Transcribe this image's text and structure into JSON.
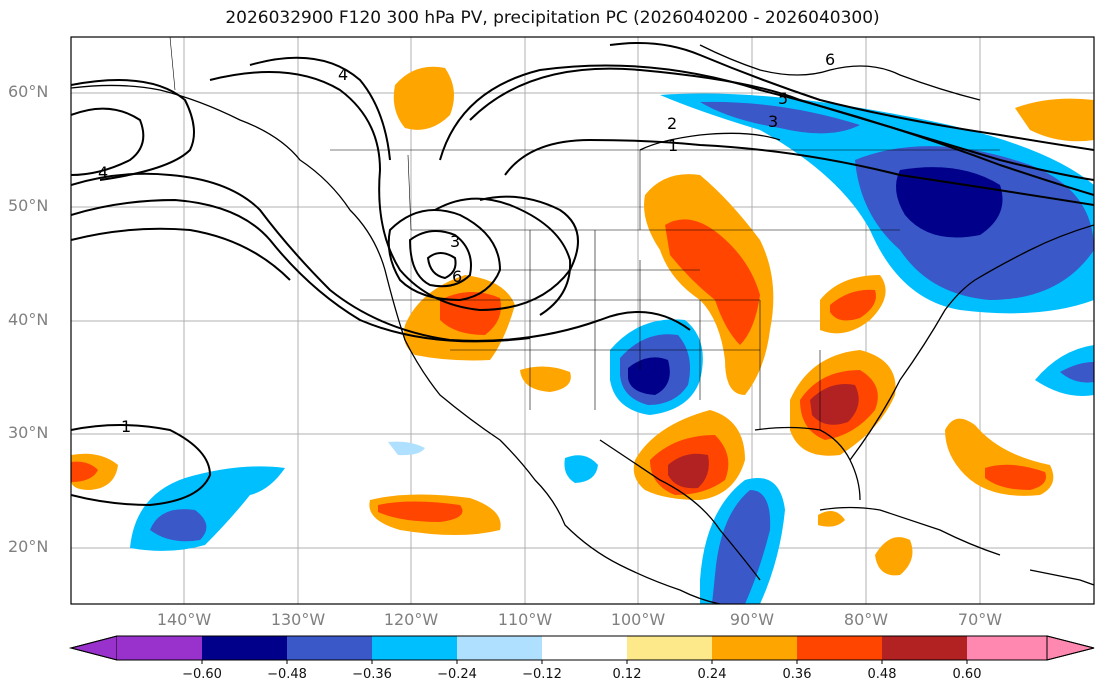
{
  "title": "2026032900 F120 300 hPa PV, precipitation PC (2026040200 - 2026040300)",
  "lat_labels": [
    "60°N",
    "50°N",
    "40°N",
    "30°N",
    "20°N"
  ],
  "lon_labels": [
    "140°W",
    "130°W",
    "120°W",
    "110°W",
    "100°W",
    "90°W",
    "80°W",
    "70°W"
  ],
  "contour_labels": [
    "1",
    "2",
    "3",
    "4",
    "5",
    "6"
  ],
  "map_extent": {
    "lon_min": -150,
    "lon_max": -60,
    "lat_min": 15,
    "lat_max": 65
  },
  "colorbar": {
    "ticks": [
      "−0.60",
      "−0.48",
      "−0.36",
      "−0.24",
      "−0.12",
      "0.12",
      "0.24",
      "0.36",
      "0.48",
      "0.60"
    ],
    "colors": [
      "#9932cc",
      "#00008b",
      "#3a58c7",
      "#00bfff",
      "#b0e0ff",
      "#ffffff",
      "#fde98a",
      "#ffa500",
      "#ff4500",
      "#b22222",
      "#ff88b0"
    ]
  }
}
